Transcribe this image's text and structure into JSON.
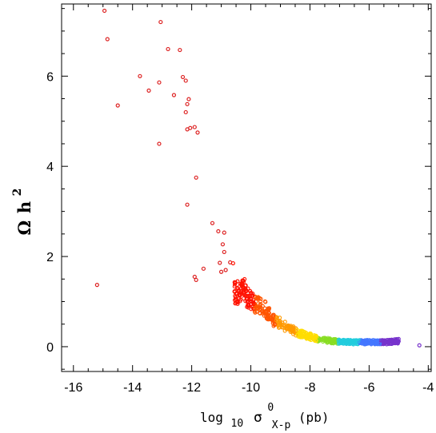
{
  "chart_data": {
    "type": "scatter",
    "xlabel": {
      "main": "log",
      "sub": "10",
      "symbol": "σ",
      "sup": "0",
      "sub2": "X-p",
      "unit": "(pb)"
    },
    "ylabel": {
      "symbol": "Ω",
      "letter": "h",
      "sup": "2"
    },
    "xlim": [
      -16.4,
      -3.9
    ],
    "ylim": [
      -0.55,
      7.6
    ],
    "xticks": [
      {
        "value": -16,
        "label": "-16"
      },
      {
        "value": -14,
        "label": "-14"
      },
      {
        "value": -12,
        "label": "-12"
      },
      {
        "value": -10,
        "label": "-10"
      },
      {
        "value": -8,
        "label": "-8"
      },
      {
        "value": -6,
        "label": "-6"
      },
      {
        "value": -4,
        "label": "-4"
      }
    ],
    "yticks": [
      {
        "value": 0,
        "label": "0"
      },
      {
        "value": 2,
        "label": "2"
      },
      {
        "value": 4,
        "label": "4"
      },
      {
        "value": 6,
        "label": "6"
      }
    ],
    "grid": false,
    "marker": "open-circle",
    "colors": {
      "scatter_outliers": "#dd2222",
      "gradient": [
        "#ff1100",
        "#ff5500",
        "#ff9900",
        "#ffdd00",
        "#88dd22",
        "#22ccdd",
        "#4477ff",
        "#7733cc"
      ]
    },
    "points": [
      [
        -15.2,
        1.37
      ],
      [
        -14.95,
        7.45
      ],
      [
        -14.85,
        6.82
      ],
      [
        -14.5,
        5.35
      ],
      [
        -13.75,
        6.0
      ],
      [
        -13.45,
        5.68
      ],
      [
        -13.1,
        5.86
      ],
      [
        -13.1,
        4.5
      ],
      [
        -13.05,
        7.2
      ],
      [
        -12.8,
        6.6
      ],
      [
        -12.6,
        5.58
      ],
      [
        -12.4,
        6.58
      ],
      [
        -12.3,
        5.98
      ],
      [
        -12.2,
        5.2
      ],
      [
        -12.2,
        5.9
      ],
      [
        -12.15,
        5.38
      ],
      [
        -12.1,
        5.49
      ],
      [
        -12.15,
        4.82
      ],
      [
        -12.05,
        4.85
      ],
      [
        -12.15,
        3.15
      ],
      [
        -11.9,
        4.87
      ],
      [
        -11.8,
        4.75
      ],
      [
        -11.85,
        3.75
      ],
      [
        -11.9,
        1.55
      ],
      [
        -11.85,
        1.48
      ],
      [
        -11.6,
        1.73
      ],
      [
        -11.3,
        2.74
      ],
      [
        -11.1,
        2.56
      ],
      [
        -10.95,
        2.27
      ],
      [
        -10.9,
        2.53
      ],
      [
        -10.9,
        2.1
      ],
      [
        -11.05,
        1.86
      ],
      [
        -11.0,
        1.66
      ],
      [
        -10.85,
        1.7
      ],
      [
        -10.7,
        1.87
      ],
      [
        -10.6,
        1.85
      ],
      [
        -10.3,
        1.35
      ],
      [
        -10.45,
        1.45
      ],
      [
        -10.2,
        1.28
      ],
      [
        -10.55,
        1.22
      ],
      [
        -10.15,
        1.12
      ],
      [
        -10.5,
        1.18
      ],
      [
        -10.4,
        1.07
      ],
      [
        -10.0,
        1.05
      ],
      [
        -9.85,
        0.93
      ],
      [
        -9.6,
        0.9
      ],
      [
        -9.4,
        0.74
      ],
      [
        -9.3,
        0.6
      ],
      [
        -9.0,
        0.52
      ],
      [
        -8.7,
        0.4
      ],
      [
        -8.3,
        0.28
      ],
      [
        -7.7,
        0.17
      ],
      [
        -7.2,
        0.12
      ],
      [
        -6.6,
        0.1
      ],
      [
        -6.0,
        0.1
      ],
      [
        -5.4,
        0.1
      ],
      [
        -5.0,
        0.12
      ],
      [
        -4.3,
        0.03
      ]
    ]
  }
}
